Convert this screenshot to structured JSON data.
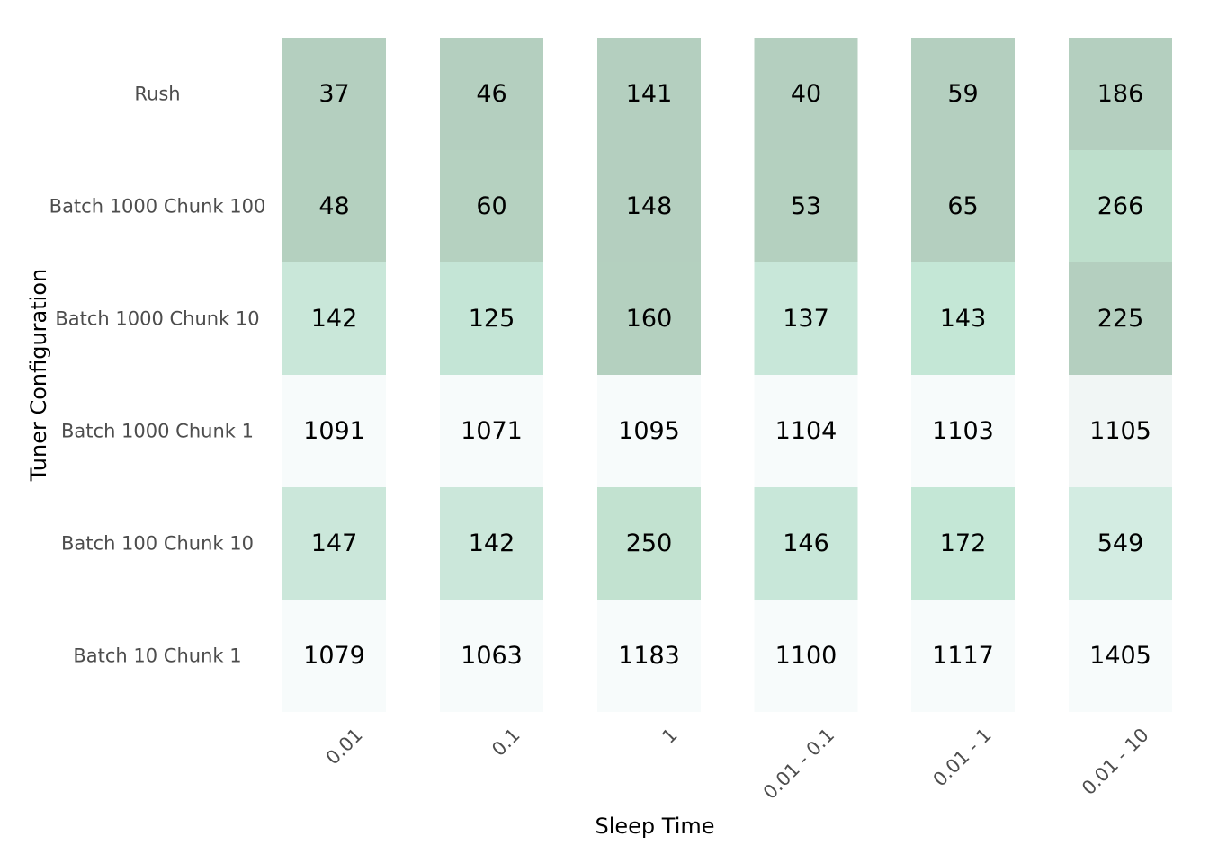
{
  "chart_data": {
    "type": "heatmap",
    "xlabel": "Sleep Time",
    "ylabel": "Tuner Configuration",
    "x_categories": [
      "0.01",
      "0.1",
      "1",
      "0.01 - 0.1",
      "0.01 - 1",
      "0.01 - 10"
    ],
    "y_categories": [
      "Rush",
      "Batch 1000 Chunk 100",
      "Batch 1000 Chunk 10",
      "Batch 1000 Chunk 1",
      "Batch 100 Chunk 10",
      "Batch 10 Chunk 1"
    ],
    "values": [
      [
        37,
        46,
        141,
        40,
        59,
        186
      ],
      [
        48,
        60,
        148,
        53,
        65,
        266
      ],
      [
        142,
        125,
        160,
        137,
        143,
        225
      ],
      [
        1091,
        1071,
        1095,
        1104,
        1103,
        1105
      ],
      [
        147,
        142,
        250,
        146,
        172,
        549
      ],
      [
        1079,
        1063,
        1183,
        1100,
        1117,
        1405
      ]
    ],
    "colors": [
      [
        "#b4cfbf",
        "#b4cfbf",
        "#b4cfbf",
        "#b4cfbf",
        "#b4cfbf",
        "#b4cfbf"
      ],
      [
        "#b4d0bf",
        "#b5d1c0",
        "#b4cfbf",
        "#b4d0bf",
        "#b4cfbf",
        "#bedfcc"
      ],
      [
        "#c9e7d9",
        "#c4e5d6",
        "#b4d0bf",
        "#c8e7d9",
        "#c4e7d6",
        "#b4cfbf"
      ],
      [
        "#f7fbfb",
        "#f7fbfb",
        "#f7fbfb",
        "#f7fbfb",
        "#f7fbfb",
        "#f1f6f5"
      ],
      [
        "#cbe7da",
        "#cbe7da",
        "#c2e2d0",
        "#c8e7d9",
        "#c4e7d6",
        "#d3ece2"
      ],
      [
        "#f7fbfb",
        "#f7fbfb",
        "#f7fbfb",
        "#f7fbfb",
        "#f7fbfb",
        "#f7fbfb"
      ]
    ],
    "grid": false,
    "legend": "none"
  }
}
